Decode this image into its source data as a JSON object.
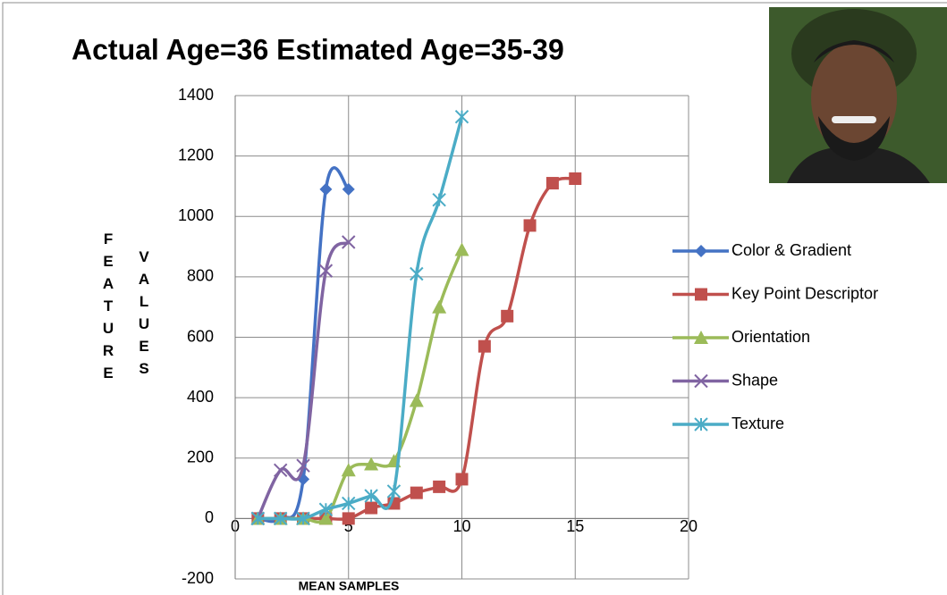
{
  "chart_data": {
    "type": "line",
    "title": "Actual Age=36 Estimated Age=35-39",
    "x_label": "MEAN SAMPLES",
    "y_label": [
      "FEATURE",
      "VALUES"
    ],
    "xlim": [
      0,
      20
    ],
    "xticks": [
      0,
      5,
      10,
      15,
      20
    ],
    "ylim": [
      -200,
      1400
    ],
    "yticks": [
      -200,
      0,
      200,
      400,
      600,
      800,
      1000,
      1200,
      1400
    ],
    "grid": true,
    "smooth": true,
    "legend": "right",
    "series": [
      {
        "name": "Color & Gradient",
        "color": "#4472c4",
        "marker": "diamond",
        "x": [
          1,
          2,
          3,
          4,
          5
        ],
        "values": [
          0,
          0,
          130,
          1090,
          1090
        ]
      },
      {
        "name": "Key Point Descriptor",
        "color": "#c0504d",
        "marker": "square",
        "x": [
          1,
          2,
          3,
          4,
          5,
          6,
          7,
          8,
          9,
          10,
          11,
          12,
          13,
          14,
          15
        ],
        "values": [
          0,
          0,
          0,
          0,
          0,
          35,
          50,
          85,
          105,
          130,
          570,
          670,
          970,
          1110,
          1125
        ]
      },
      {
        "name": "Orientation",
        "color": "#9bbb59",
        "marker": "triangle",
        "x": [
          1,
          2,
          3,
          4,
          5,
          6,
          7,
          8,
          9,
          10
        ],
        "values": [
          0,
          0,
          0,
          0,
          160,
          180,
          190,
          390,
          700,
          890
        ]
      },
      {
        "name": "Shape",
        "color": "#8064a2",
        "marker": "x",
        "x": [
          1,
          2,
          3,
          4,
          5
        ],
        "values": [
          0,
          160,
          175,
          820,
          915
        ]
      },
      {
        "name": "Texture",
        "color": "#4bacc6",
        "marker": "star",
        "x": [
          1,
          2,
          3,
          4,
          5,
          6,
          7,
          8,
          9,
          10
        ],
        "values": [
          0,
          0,
          0,
          30,
          50,
          75,
          90,
          810,
          1055,
          1330
        ]
      }
    ]
  }
}
